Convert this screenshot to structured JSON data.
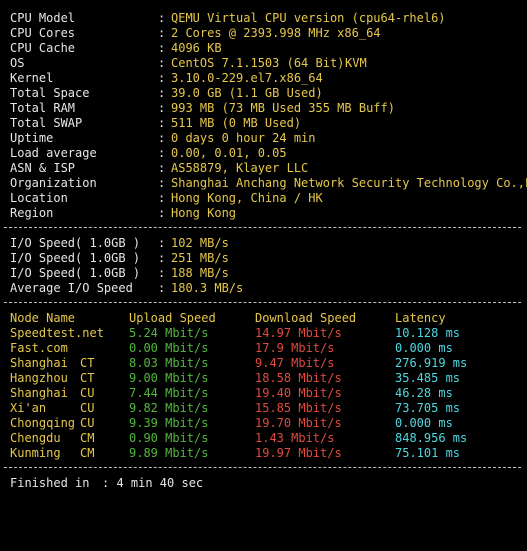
{
  "colors": {
    "background": "#000000",
    "label": "#e6e6e6",
    "value": "#e6c84a",
    "cyan": "#4fd8e0",
    "green": "#52b83d",
    "red": "#e04a3f"
  },
  "sysinfo": [
    {
      "label": "CPU Model",
      "value": "QEMU Virtual CPU version (cpu64-rhel6)",
      "extra": ""
    },
    {
      "label": "CPU Cores",
      "value": "2 Cores @ 2393.998 MHz x86_64",
      "extra": ""
    },
    {
      "label": "CPU Cache",
      "value": "4096 KB",
      "extra": ""
    },
    {
      "label": "OS",
      "value": "CentOS 7.1.1503 (64 Bit)",
      "extra": "KVM"
    },
    {
      "label": "Kernel",
      "value": "3.10.0-229.el7.x86_64",
      "extra": ""
    },
    {
      "label": "Total Space",
      "value": "39.0 GB (1.1 GB Used)",
      "extra": ""
    },
    {
      "label": "Total RAM",
      "value": "993 MB (73 MB Used 355 MB Buff)",
      "extra": ""
    },
    {
      "label": "Total SWAP",
      "value": "511 MB (0 MB Used)",
      "extra": ""
    },
    {
      "label": "Uptime",
      "value": "0 days 0 hour 24 min",
      "extra": ""
    },
    {
      "label": "Load average",
      "value": "0.00, 0.01, 0.05",
      "extra": ""
    },
    {
      "label": "ASN & ISP",
      "value": "AS58879, Klayer LLC",
      "extra": ""
    },
    {
      "label": "Organization",
      "value": "Shanghai Anchang Network Security Technology Co.,L",
      "extra": ""
    },
    {
      "label": "Location",
      "value": "Hong Kong, China / HK",
      "extra": ""
    },
    {
      "label": "Region",
      "value": "Hong Kong",
      "extra": ""
    }
  ],
  "io": [
    {
      "label": "I/O Speed( 1.0GB )",
      "value": "102 MB/s"
    },
    {
      "label": "I/O Speed( 1.0GB )",
      "value": "251 MB/s"
    },
    {
      "label": "I/O Speed( 1.0GB )",
      "value": "188 MB/s"
    },
    {
      "label": "Average I/O Speed",
      "value": "180.3 MB/s"
    }
  ],
  "speedtest": {
    "headers": [
      "Node Name",
      "Upload Speed",
      "Download Speed",
      "Latency"
    ],
    "rows": [
      {
        "node": "Speedtest.net",
        "isp": "",
        "upload": "5.24 Mbit/s",
        "download": "14.97 Mbit/s",
        "latency": "10.128 ms"
      },
      {
        "node": "Fast.com",
        "isp": "",
        "upload": "0.00 Mbit/s",
        "download": "17.9 Mbit/s",
        "latency": "0.000 ms"
      },
      {
        "node": "Shanghai",
        "isp": "CT",
        "upload": "8.03 Mbit/s",
        "download": "9.47 Mbit/s",
        "latency": "276.919 ms"
      },
      {
        "node": "Hangzhou",
        "isp": "CT",
        "upload": "9.00 Mbit/s",
        "download": "18.58 Mbit/s",
        "latency": "35.485 ms"
      },
      {
        "node": "Shanghai",
        "isp": "CU",
        "upload": "7.44 Mbit/s",
        "download": "19.40 Mbit/s",
        "latency": "46.28 ms"
      },
      {
        "node": "Xi'an",
        "isp": "CU",
        "upload": "9.82 Mbit/s",
        "download": "15.85 Mbit/s",
        "latency": "73.705 ms"
      },
      {
        "node": "Chongqing",
        "isp": "CU",
        "upload": "9.39 Mbit/s",
        "download": "19.70 Mbit/s",
        "latency": "0.000 ms"
      },
      {
        "node": "Chengdu",
        "isp": "CM",
        "upload": "0.90 Mbit/s",
        "download": "1.43 Mbit/s",
        "latency": "848.956 ms"
      },
      {
        "node": "Kunming",
        "isp": "CM",
        "upload": "9.89 Mbit/s",
        "download": "19.97 Mbit/s",
        "latency": "75.101 ms"
      }
    ]
  },
  "footer": {
    "label": "Finished in",
    "value": ": 4 min 40 sec"
  }
}
